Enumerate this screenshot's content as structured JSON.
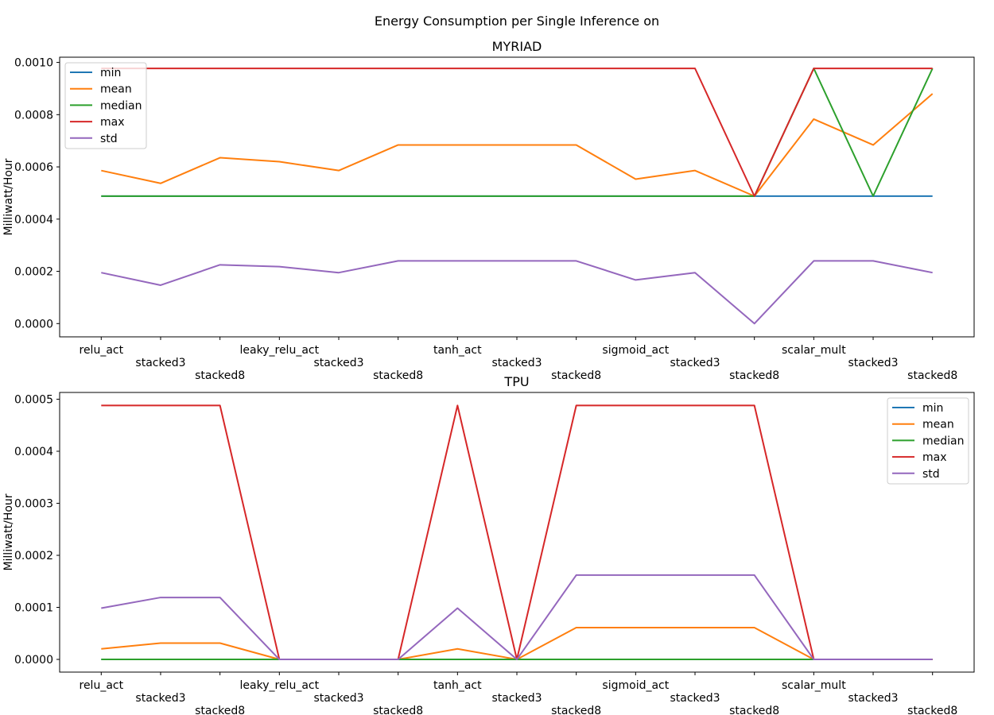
{
  "suptitle": "Energy Consumption per Single Inference on",
  "colors": {
    "min": "#1f77b4",
    "mean": "#ff7f0e",
    "median": "#2ca02c",
    "max": "#d62728",
    "std": "#9467bd"
  },
  "chart_data": [
    {
      "type": "line",
      "title": "MYRIAD",
      "xlabel": "",
      "ylabel": "Milliwatt/Hour",
      "categories": [
        "relu_act",
        "stacked3",
        "stacked8",
        "leaky_relu_act",
        "stacked3",
        "stacked8",
        "tanh_act",
        "stacked3",
        "stacked8",
        "sigmoid_act",
        "stacked3",
        "stacked8",
        "scalar_mult",
        "stacked3",
        "stacked8"
      ],
      "yticks": [
        "0.0000",
        "0.0002",
        "0.0004",
        "0.0006",
        "0.0008",
        "0.0010"
      ],
      "ylim": [
        -5.08e-05,
        0.00102
      ],
      "legend_position": "upper left",
      "series": [
        {
          "name": "min",
          "values": [
            0.000488,
            0.000488,
            0.000488,
            0.000488,
            0.000488,
            0.000488,
            0.000488,
            0.000488,
            0.000488,
            0.000488,
            0.000488,
            0.000488,
            0.000488,
            0.000488,
            0.000488
          ]
        },
        {
          "name": "mean",
          "values": [
            0.000586,
            0.000537,
            0.000635,
            0.00062,
            0.000586,
            0.000684,
            0.000684,
            0.000684,
            0.000684,
            0.000553,
            0.000586,
            0.000488,
            0.000783,
            0.000684,
            0.00088
          ]
        },
        {
          "name": "median",
          "values": [
            0.000488,
            0.000488,
            0.000488,
            0.000488,
            0.000488,
            0.000488,
            0.000488,
            0.000488,
            0.000488,
            0.000488,
            0.000488,
            0.000488,
            0.000977,
            0.000488,
            0.000977
          ]
        },
        {
          "name": "max",
          "values": [
            0.000977,
            0.000977,
            0.000977,
            0.000977,
            0.000977,
            0.000977,
            0.000977,
            0.000977,
            0.000977,
            0.000977,
            0.000977,
            0.000488,
            0.000977,
            0.000977,
            0.000977
          ]
        },
        {
          "name": "std",
          "values": [
            0.000195,
            0.000147,
            0.000225,
            0.000218,
            0.000195,
            0.00024,
            0.00024,
            0.00024,
            0.00024,
            0.000167,
            0.000195,
            0.0,
            0.00024,
            0.00024,
            0.000195
          ]
        }
      ]
    },
    {
      "type": "line",
      "title": "TPU",
      "xlabel": "",
      "ylabel": "Milliwatt/Hour",
      "categories": [
        "relu_act",
        "stacked3",
        "stacked8",
        "leaky_relu_act",
        "stacked3",
        "stacked8",
        "tanh_act",
        "stacked3",
        "stacked8",
        "sigmoid_act",
        "stacked3",
        "stacked8",
        "scalar_mult",
        "stacked3",
        "stacked8"
      ],
      "yticks": [
        "0.0000",
        "0.0001",
        "0.0002",
        "0.0003",
        "0.0004",
        "0.0005"
      ],
      "ylim": [
        -2.44e-05,
        0.000513
      ],
      "legend_position": "upper right",
      "series": [
        {
          "name": "min",
          "values": [
            0,
            0,
            0,
            0,
            0,
            0,
            0,
            0,
            0,
            0,
            0,
            0,
            0,
            0,
            0
          ]
        },
        {
          "name": "mean",
          "values": [
            2.03e-05,
            3.13e-05,
            3.13e-05,
            0,
            0,
            0,
            2.03e-05,
            0,
            6.11e-05,
            6.11e-05,
            6.11e-05,
            6.11e-05,
            0,
            0,
            0
          ]
        },
        {
          "name": "median",
          "values": [
            0,
            0,
            0,
            0,
            0,
            0,
            0,
            0,
            0,
            0,
            0,
            0,
            0,
            0,
            0
          ]
        },
        {
          "name": "max",
          "values": [
            0.000488,
            0.000488,
            0.000488,
            0,
            0,
            0,
            0.000488,
            0,
            0.000488,
            0.000488,
            0.000488,
            0.000488,
            0,
            0,
            0
          ]
        },
        {
          "name": "std",
          "values": [
            9.85e-05,
            0.000119,
            0.000119,
            0,
            0,
            0,
            9.85e-05,
            0,
            0.000162,
            0.000162,
            0.000162,
            0.000162,
            0,
            0,
            0
          ]
        }
      ]
    }
  ]
}
